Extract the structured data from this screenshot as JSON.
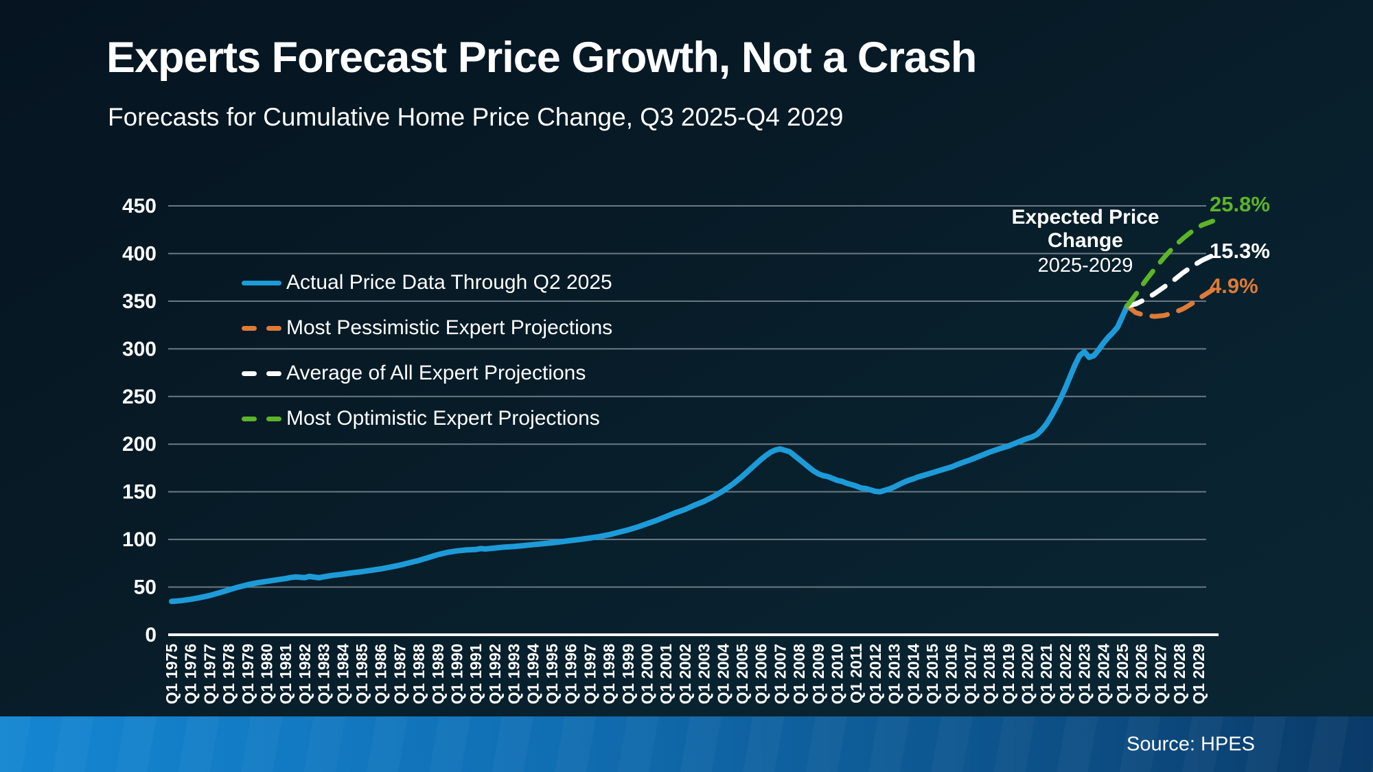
{
  "header": {
    "title": "Experts Forecast Price Growth, Not a Crash",
    "subtitle": "Forecasts for Cumulative Home Price Change, Q3 2025-Q4 2029"
  },
  "annotation": {
    "title": "Expected Price Change",
    "subtitle": "2025-2029"
  },
  "source_label": "Source: HPES",
  "colors": {
    "background_dark": "#071a26",
    "gridline": "#6c7a84",
    "axis": "#ffffff",
    "actual_line": "#1d9bd8",
    "pessimistic_line": "#de7b38",
    "average_line": "#ffffff",
    "optimistic_line": "#5cb429",
    "footer_left": "#1486d2",
    "footer_right": "#0a3a68"
  },
  "chart_data": {
    "type": "line",
    "title": "Forecasts for Cumulative Home Price Change, Q3 2025-Q4 2029",
    "xlabel": "",
    "ylabel": "",
    "grid": true,
    "legend_position": "upper-left-inside",
    "y_axis": {
      "min": 0,
      "max": 450,
      "step": 50,
      "ticks": [
        0,
        50,
        100,
        150,
        200,
        250,
        300,
        350,
        400,
        450
      ]
    },
    "x_axis": {
      "labels": [
        "Q1 1975",
        "Q1 1976",
        "Q1 1977",
        "Q1 1978",
        "Q1 1979",
        "Q1 1980",
        "Q1 1981",
        "Q1 1982",
        "Q1 1983",
        "Q1 1984",
        "Q1 1985",
        "Q1 1986",
        "Q1 1987",
        "Q1 1988",
        "Q1 1989",
        "Q1 1990",
        "Q1 1991",
        "Q1 1992",
        "Q1 1993",
        "Q1 1994",
        "Q1 1995",
        "Q1 1996",
        "Q1 1997",
        "Q1 1998",
        "Q1 1999",
        "Q1 2000",
        "Q1 2001",
        "Q1 2002",
        "Q1 2003",
        "Q1 2004",
        "Q1 2005",
        "Q1 2006",
        "Q1 2007",
        "Q1 2008",
        "Q1 2009",
        "Q1 2010",
        "Q1 2011",
        "Q1 2012",
        "Q1 2013",
        "Q1 2014",
        "Q1 2015",
        "Q1 2016",
        "Q1 2017",
        "Q1 2018",
        "Q1 2019",
        "Q1 2020",
        "Q1 2021",
        "Q1 2022",
        "Q1 2023",
        "Q1 2024",
        "Q1 2025",
        "Q1 2026",
        "Q1 2027",
        "Q1 2028",
        "Q1 2029"
      ],
      "start_year": 1975
    },
    "series": [
      {
        "name": "Actual Price Data Through Q2 2025",
        "style": "solid",
        "color": "#1d9bd8",
        "end_label": "",
        "points": [
          [
            1975,
            35
          ],
          [
            1975.5,
            35.8
          ],
          [
            1976,
            37.2
          ],
          [
            1976.5,
            39
          ],
          [
            1977,
            41.2
          ],
          [
            1977.5,
            44
          ],
          [
            1978,
            47
          ],
          [
            1978.5,
            50
          ],
          [
            1979,
            52.5
          ],
          [
            1979.5,
            54.5
          ],
          [
            1980,
            56
          ],
          [
            1980.5,
            57.5
          ],
          [
            1981,
            59
          ],
          [
            1981.25,
            60
          ],
          [
            1981.5,
            60.6
          ],
          [
            1982,
            60
          ],
          [
            1982.25,
            61.3
          ],
          [
            1982.5,
            60.5
          ],
          [
            1982.75,
            59.8
          ],
          [
            1983,
            60.8
          ],
          [
            1983.5,
            62.4
          ],
          [
            1984,
            63.6
          ],
          [
            1984.5,
            65
          ],
          [
            1985,
            66.2
          ],
          [
            1985.5,
            67.6
          ],
          [
            1986,
            69.1
          ],
          [
            1986.5,
            71
          ],
          [
            1987,
            73
          ],
          [
            1987.5,
            75.5
          ],
          [
            1988,
            78
          ],
          [
            1988.5,
            81
          ],
          [
            1989,
            84
          ],
          [
            1989.5,
            86.4
          ],
          [
            1990,
            88
          ],
          [
            1990.5,
            89
          ],
          [
            1991,
            89.5
          ],
          [
            1991.25,
            90.4
          ],
          [
            1991.5,
            90
          ],
          [
            1992,
            91
          ],
          [
            1992.5,
            92
          ],
          [
            1993,
            92.6
          ],
          [
            1993.5,
            93.5
          ],
          [
            1994,
            94.5
          ],
          [
            1994.5,
            95.5
          ],
          [
            1995,
            96.5
          ],
          [
            1995.5,
            97.6
          ],
          [
            1996,
            98.9
          ],
          [
            1996.5,
            100.1
          ],
          [
            1997,
            101.5
          ],
          [
            1997.5,
            103
          ],
          [
            1998,
            105
          ],
          [
            1998.5,
            107.5
          ],
          [
            1999,
            110
          ],
          [
            1999.5,
            113
          ],
          [
            2000,
            116.5
          ],
          [
            2000.5,
            120
          ],
          [
            2001,
            124
          ],
          [
            2001.5,
            128
          ],
          [
            2002,
            131.5
          ],
          [
            2002.5,
            136
          ],
          [
            2003,
            140
          ],
          [
            2003.5,
            145
          ],
          [
            2004,
            151
          ],
          [
            2004.5,
            158
          ],
          [
            2005,
            166
          ],
          [
            2005.5,
            175
          ],
          [
            2006,
            184
          ],
          [
            2006.25,
            188
          ],
          [
            2006.5,
            191.5
          ],
          [
            2006.75,
            193.8
          ],
          [
            2007,
            195
          ],
          [
            2007.25,
            193.5
          ],
          [
            2007.5,
            192
          ],
          [
            2007.75,
            188
          ],
          [
            2008,
            184
          ],
          [
            2008.25,
            180
          ],
          [
            2008.5,
            176
          ],
          [
            2008.75,
            172
          ],
          [
            2009,
            169
          ],
          [
            2009.25,
            167
          ],
          [
            2009.5,
            166
          ],
          [
            2009.75,
            164
          ],
          [
            2010,
            162
          ],
          [
            2010.25,
            161
          ],
          [
            2010.5,
            159
          ],
          [
            2010.75,
            157.5
          ],
          [
            2011,
            156
          ],
          [
            2011.25,
            154
          ],
          [
            2011.5,
            153.5
          ],
          [
            2011.75,
            152
          ],
          [
            2012,
            150.5
          ],
          [
            2012.25,
            150
          ],
          [
            2012.5,
            151.5
          ],
          [
            2012.75,
            153
          ],
          [
            2013,
            155
          ],
          [
            2013.25,
            157.5
          ],
          [
            2013.5,
            160
          ],
          [
            2013.75,
            162
          ],
          [
            2014,
            163.5
          ],
          [
            2014.25,
            165.5
          ],
          [
            2014.5,
            167
          ],
          [
            2015,
            170
          ],
          [
            2015.5,
            173
          ],
          [
            2016,
            176
          ],
          [
            2016.5,
            180
          ],
          [
            2017,
            183.5
          ],
          [
            2017.5,
            187.5
          ],
          [
            2018,
            191.5
          ],
          [
            2018.5,
            195
          ],
          [
            2019,
            198
          ],
          [
            2019.5,
            202
          ],
          [
            2020,
            206
          ],
          [
            2020.25,
            207.5
          ],
          [
            2020.5,
            210
          ],
          [
            2020.75,
            215
          ],
          [
            2021,
            221
          ],
          [
            2021.25,
            229
          ],
          [
            2021.5,
            238
          ],
          [
            2021.75,
            248
          ],
          [
            2022,
            259
          ],
          [
            2022.25,
            271
          ],
          [
            2022.5,
            283
          ],
          [
            2022.75,
            293
          ],
          [
            2023,
            297
          ],
          [
            2023.25,
            291
          ],
          [
            2023.5,
            293
          ],
          [
            2023.75,
            299
          ],
          [
            2024,
            306
          ],
          [
            2024.25,
            312
          ],
          [
            2024.5,
            317
          ],
          [
            2024.75,
            323
          ],
          [
            2025,
            334
          ],
          [
            2025.25,
            345
          ]
        ]
      },
      {
        "name": "Most Pessimistic Expert Projections",
        "style": "dashed",
        "color": "#de7b38",
        "end_label": "4.9%",
        "points": [
          [
            2025.25,
            345
          ],
          [
            2025.7,
            338
          ],
          [
            2026.2,
            335
          ],
          [
            2026.7,
            334
          ],
          [
            2027.2,
            335
          ],
          [
            2027.7,
            338
          ],
          [
            2028.2,
            342
          ],
          [
            2028.7,
            348
          ],
          [
            2029.2,
            355
          ],
          [
            2029.75,
            362
          ]
        ]
      },
      {
        "name": "Average of All Expert Projections",
        "style": "dashed",
        "color": "#ffffff",
        "end_label": "15.3%",
        "points": [
          [
            2025.25,
            345
          ],
          [
            2025.7,
            347
          ],
          [
            2026.2,
            352
          ],
          [
            2026.7,
            358
          ],
          [
            2027.2,
            365
          ],
          [
            2027.7,
            372
          ],
          [
            2028.2,
            380
          ],
          [
            2028.7,
            387
          ],
          [
            2029.2,
            393
          ],
          [
            2029.75,
            398
          ]
        ]
      },
      {
        "name": "Most Optimistic Expert Projections",
        "style": "dashed",
        "color": "#5cb429",
        "end_label": "25.8%",
        "points": [
          [
            2025.25,
            345
          ],
          [
            2025.7,
            357
          ],
          [
            2026.2,
            371
          ],
          [
            2026.7,
            384
          ],
          [
            2027.2,
            396
          ],
          [
            2027.7,
            407
          ],
          [
            2028.2,
            416
          ],
          [
            2028.7,
            424
          ],
          [
            2029.2,
            430
          ],
          [
            2029.75,
            434
          ]
        ]
      }
    ]
  }
}
